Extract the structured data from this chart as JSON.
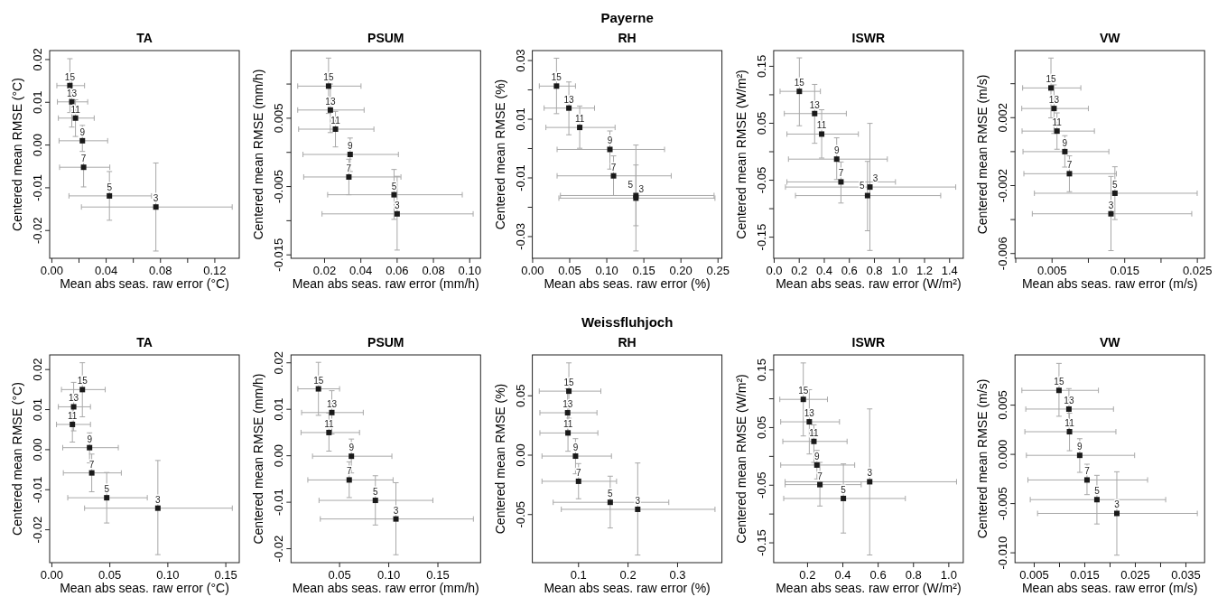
{
  "chart_data": [
    {
      "type": "scatter",
      "title": "TA",
      "xlabel": "Mean abs seas. raw error (°C)",
      "ylabel": "Centered mean RMSE (°C)",
      "color": "#1a1a1a",
      "marker": "square",
      "xlim": [
        -0.0016,
        0.138
      ],
      "ylim": [
        -0.0265,
        0.0221
      ],
      "xticks": [
        {
          "value": 0,
          "label": "0.00"
        },
        {
          "value": 0.02,
          "label": null
        },
        0.04,
        {
          "value": 0.06,
          "label": null
        },
        0.08,
        {
          "value": 0.1,
          "label": null
        },
        0.12
      ],
      "yticks": [
        -0.02,
        -0.01,
        {
          "value": 0,
          "label": "0.00"
        },
        0.01,
        0.02
      ],
      "x": [
        0.0133,
        0.0147,
        0.0174,
        0.0225,
        0.0234,
        0.0424,
        0.0766
      ],
      "values": [
        0.0139,
        0.0101,
        0.0063,
        0.001,
        -0.0052,
        -0.0119,
        -0.0145
      ],
      "xerrors": [
        [
          0.0037,
          0.0241
        ],
        [
          0.0041,
          0.0264
        ],
        [
          0.0048,
          0.0312
        ],
        [
          0.0053,
          0.0411
        ],
        [
          0.0057,
          0.0427
        ],
        [
          0.0126,
          0.0734
        ],
        [
          0.0218,
          0.1328
        ]
      ],
      "errors": [
        [
          0.0076,
          0.0202
        ],
        [
          0.0042,
          0.016
        ],
        [
          0.002,
          0.0106
        ],
        [
          -0.0015,
          0.0046
        ],
        [
          -0.0098,
          -0.0023
        ],
        [
          -0.0176,
          -0.0062
        ],
        [
          -0.0248,
          -0.0042
        ]
      ],
      "annotations": [
        {
          "text": "15",
          "x": 0.0133,
          "y": 0.0139
        },
        {
          "text": "13",
          "x": 0.0147,
          "y": 0.0101
        },
        {
          "text": "11",
          "x": 0.0174,
          "y": 0.0063
        },
        {
          "text": "9",
          "x": 0.0225,
          "y": 0.001
        },
        {
          "text": "7",
          "x": 0.0234,
          "y": -0.0052
        },
        {
          "text": "5",
          "x": 0.0424,
          "y": -0.0119
        },
        {
          "text": "3",
          "x": 0.0766,
          "y": -0.0145
        }
      ]
    },
    {
      "type": "scatter",
      "title": "PSUM",
      "xlabel": "Mean abs seas. raw error (mm/h)",
      "ylabel": "Centered mean RMSE (mm/h)",
      "color": "#1a1a1a",
      "marker": "square",
      "xlim": [
        0.0015,
        0.106
      ],
      "ylim": [
        -0.0155,
        0.0149
      ],
      "xticks": [
        0.02,
        0.04,
        0.06,
        0.08,
        {
          "value": 0.1,
          "label": "0.10"
        }
      ],
      "yticks": [
        -0.015,
        {
          "value": -0.01,
          "label": null
        },
        -0.005,
        {
          "value": 0,
          "label": null
        },
        0.005,
        {
          "value": 0.01,
          "label": null
        }
      ],
      "x": [
        0.0222,
        0.0232,
        0.026,
        0.0341,
        0.0334,
        0.0583,
        0.06
      ],
      "values": [
        0.0097,
        0.0062,
        0.0034,
        -0.0003,
        -0.0036,
        -0.0062,
        -0.009
      ],
      "xerrors": [
        [
          0.0052,
          0.0401
        ],
        [
          0.0052,
          0.0418
        ],
        [
          0.0057,
          0.0472
        ],
        [
          0.0081,
          0.0607
        ],
        [
          0.0085,
          0.0621
        ],
        [
          0.0217,
          0.0959
        ],
        [
          0.0186,
          0.1019
        ]
      ],
      "errors": [
        [
          0.0057,
          0.0138
        ],
        [
          0.0029,
          0.01
        ],
        [
          0.0008,
          0.006
        ],
        [
          -0.0028,
          0.0021
        ],
        [
          -0.0062,
          -0.001
        ],
        [
          -0.0098,
          -0.0025
        ],
        [
          -0.0143,
          -0.0035
        ]
      ],
      "annotations": [
        {
          "text": "15",
          "x": 0.0222,
          "y": 0.0097
        },
        {
          "text": "13",
          "x": 0.0232,
          "y": 0.0062
        },
        {
          "text": "11",
          "x": 0.026,
          "y": 0.0034
        },
        {
          "text": "9",
          "x": 0.0341,
          "y": -0.0003
        },
        {
          "text": "7",
          "x": 0.0334,
          "y": -0.0036
        },
        {
          "text": "5",
          "x": 0.0583,
          "y": -0.0062
        },
        {
          "text": "3",
          "x": 0.06,
          "y": -0.009
        }
      ]
    },
    {
      "type": "scatter",
      "title": "RH",
      "xlabel": "Mean abs seas. raw error (%)",
      "ylabel": "Centered mean RMSE (%)",
      "color": "#1a1a1a",
      "marker": "square",
      "xlim": [
        -0.0004,
        0.2553
      ],
      "ylim": [
        -0.0374,
        0.0334
      ],
      "xticks": [
        {
          "value": 0,
          "label": "0.00"
        },
        0.05,
        {
          "value": 0.1,
          "label": "0.10"
        },
        0.15,
        {
          "value": 0.2,
          "label": "0.20"
        },
        0.25
      ],
      "yticks": [
        -0.03,
        {
          "value": -0.02,
          "label": null
        },
        -0.01,
        {
          "value": 0,
          "label": null
        },
        0.01,
        {
          "value": 0.02,
          "label": null
        },
        0.03
      ],
      "x": [
        0.0322,
        0.0489,
        0.0635,
        0.1042,
        0.1091,
        0.1393,
        0.1393
      ],
      "values": [
        0.0213,
        0.0138,
        0.0072,
        -0.0003,
        -0.0093,
        -0.016,
        -0.0169
      ],
      "xerrors": [
        [
          0.009,
          0.0578
        ],
        [
          0.0155,
          0.0835
        ],
        [
          0.0179,
          0.1112
        ],
        [
          0.033,
          0.1779
        ],
        [
          0.033,
          0.1869
        ],
        [
          0.0375,
          0.2447
        ],
        [
          0.0354,
          0.2459
        ]
      ],
      "errors": [
        [
          0.0119,
          0.0308
        ],
        [
          0.0047,
          0.0227
        ],
        [
          0.0001,
          0.0145
        ],
        [
          -0.007,
          0.006
        ],
        [
          -0.016,
          -0.0025
        ],
        [
          -0.0263,
          -0.0056
        ],
        [
          -0.0349,
          0.0012
        ]
      ],
      "annotations": [
        "Payerne",
        {
          "text": "15",
          "x": 0.0322,
          "y": 0.0213
        },
        {
          "text": "13",
          "x": 0.0489,
          "y": 0.0138
        },
        {
          "text": "11",
          "x": 0.0635,
          "y": 0.0072
        },
        {
          "text": "9",
          "x": 0.1042,
          "y": -0.0003
        },
        {
          "text": "7",
          "x": 0.1091,
          "y": -0.0093
        },
        {
          "text": "5",
          "x": 0.1393,
          "y": -0.016
        },
        {
          "text": "3",
          "x": 0.1393,
          "y": -0.0169
        }
      ]
    },
    {
      "type": "scatter",
      "title": "ISWR",
      "xlabel": "Mean abs seas. raw error (W/m²)",
      "ylabel": "Centered mean RMSE (W/m²)",
      "color": "#1a1a1a",
      "marker": "square",
      "xlim": [
        -0.004,
        1.509
      ],
      "ylim": [
        -0.1871,
        0.1776
      ],
      "xticks": [
        {
          "value": 0,
          "label": "0.0"
        },
        0.2,
        0.4,
        0.6,
        0.8,
        {
          "value": 1,
          "label": "1.0"
        },
        1.2,
        1.4
      ],
      "yticks": [
        -0.15,
        {
          "value": -0.1,
          "label": null
        },
        -0.05,
        {
          "value": 0,
          "label": null
        },
        0.05,
        {
          "value": 0.1,
          "label": null
        },
        0.15
      ],
      "x": [
        0.201,
        0.323,
        0.379,
        0.499,
        0.533,
        0.745,
        0.764
      ],
      "values": [
        0.106,
        0.067,
        0.031,
        -0.013,
        -0.053,
        -0.077,
        -0.062
      ],
      "xerrors": [
        [
          0.047,
          0.369
        ],
        [
          0.081,
          0.576
        ],
        [
          0.102,
          0.672
        ],
        [
          0.114,
          0.903
        ],
        [
          0.102,
          0.968
        ],
        [
          0.17,
          1.329
        ],
        [
          0.09,
          1.449
        ]
      ],
      "errors": [
        [
          0.0456,
          0.1648
        ],
        [
          0.0148,
          0.1182
        ],
        [
          -0.0111,
          0.0737
        ],
        [
          -0.0488,
          0.0244
        ],
        [
          -0.0901,
          -0.018
        ],
        [
          -0.1388,
          -0.017
        ],
        [
          -0.1733,
          0.0498
        ]
      ],
      "annotations": [
        {
          "text": "15",
          "x": 0.201,
          "y": 0.106
        },
        {
          "text": "13",
          "x": 0.323,
          "y": 0.067
        },
        {
          "text": "11",
          "x": 0.379,
          "y": 0.031
        },
        {
          "text": "9",
          "x": 0.499,
          "y": -0.013
        },
        {
          "text": "7",
          "x": 0.533,
          "y": -0.053
        },
        {
          "text": "5",
          "x": 0.745,
          "y": -0.077
        },
        {
          "text": "3",
          "x": 0.764,
          "y": -0.062
        }
      ]
    },
    {
      "type": "scatter",
      "title": "VW",
      "xlabel": "Mean abs seas. raw error (m/s)",
      "ylabel": "Centered mean RMSE (m/s)",
      "color": "#1a1a1a",
      "marker": "square",
      "xlim": [
        -0.0001,
        0.026
      ],
      "ylim": [
        -0.00628,
        0.00595
      ],
      "xticks": [
        {
          "value": 0,
          "label": null
        },
        0.005,
        {
          "value": 0.01,
          "label": null
        },
        0.015,
        {
          "value": 0.02,
          "label": null
        },
        0.025
      ],
      "yticks": [
        -0.006,
        {
          "value": -0.004,
          "label": null
        },
        -0.002,
        {
          "value": 0,
          "label": null
        },
        0.002,
        {
          "value": 0.004,
          "label": null
        }
      ],
      "x": [
        0.00485,
        0.00527,
        0.00568,
        0.00676,
        0.00739,
        0.01365,
        0.01311
      ],
      "values": [
        0.00375,
        0.00254,
        0.00121,
        0,
        -0.0013,
        -0.00245,
        -0.00366
      ],
      "xerrors": [
        [
          0.00095,
          0.00896
        ],
        [
          0.00083,
          0.01
        ],
        [
          0.00087,
          0.01083
        ],
        [
          0.001,
          0.01282
        ],
        [
          0.00112,
          0.01386
        ],
        [
          0.00257,
          0.02498
        ],
        [
          0.00228,
          0.02423
        ]
      ],
      "errors": [
        [
          0.00199,
          0.00551
        ],
        [
          0.00107,
          0.00393
        ],
        [
          0.00014,
          0.00228
        ],
        [
          -0.00091,
          0.00094
        ],
        [
          -0.00236,
          -0.00025
        ],
        [
          -0.004,
          -0.00089
        ],
        [
          -0.00583,
          -0.00146
        ]
      ],
      "annotations": [
        {
          "text": "15",
          "x": 0.00485,
          "y": 0.00375
        },
        {
          "text": "13",
          "x": 0.00527,
          "y": 0.00254
        },
        {
          "text": "11",
          "x": 0.00568,
          "y": 0.00121
        },
        {
          "text": "9",
          "x": 0.00676,
          "y": 0
        },
        {
          "text": "7",
          "x": 0.00739,
          "y": -0.0013
        },
        {
          "text": "5",
          "x": 0.01365,
          "y": -0.00245
        },
        {
          "text": "3",
          "x": 0.01311,
          "y": -0.00366
        }
      ]
    },
    {
      "type": "scatter",
      "title": "TA",
      "xlabel": "Mean abs seas. raw error (°C)",
      "ylabel": "Centered mean RMSE (°C)",
      "color": "#1a1a1a",
      "marker": "square",
      "xlim": [
        -0.0019,
        0.1616
      ],
      "ylim": [
        -0.0282,
        0.02365
      ],
      "xticks": [
        {
          "value": 0,
          "label": "0.00"
        },
        0.05,
        {
          "value": 0.1,
          "label": "0.10"
        },
        0.15
      ],
      "yticks": [
        -0.02,
        -0.01,
        {
          "value": 0,
          "label": "0.00"
        },
        0.01,
        0.02
      ],
      "x": [
        0.0263,
        0.0188,
        0.0177,
        0.0325,
        0.0344,
        0.0473,
        0.0914
      ],
      "values": [
        0.015,
        0.0107,
        0.0063,
        0.0005,
        -0.0058,
        -0.012,
        -0.0146
      ],
      "xerrors": [
        [
          0.0083,
          0.046
        ],
        [
          0.0056,
          0.0333
        ],
        [
          0.004,
          0.0333
        ],
        [
          0.0094,
          0.0573
        ],
        [
          0.0099,
          0.0599
        ],
        [
          0.0137,
          0.0823
        ],
        [
          0.0282,
          0.1556
        ]
      ],
      "errors": [
        [
          0.0082,
          0.0217
        ],
        [
          0.0047,
          0.0168
        ],
        [
          0.0019,
          0.0107
        ],
        [
          -0.0033,
          0.0042
        ],
        [
          -0.0105,
          -0.0011
        ],
        [
          -0.0183,
          -0.0057
        ],
        [
          -0.0262,
          -0.0027
        ]
      ],
      "annotations": [
        {
          "text": "15",
          "x": 0.0263,
          "y": 0.015
        },
        {
          "text": "13",
          "x": 0.0188,
          "y": 0.0107
        },
        {
          "text": "11",
          "x": 0.0177,
          "y": 0.0063
        },
        {
          "text": "9",
          "x": 0.0325,
          "y": 0.0005
        },
        {
          "text": "7",
          "x": 0.0344,
          "y": -0.0058
        },
        {
          "text": "5",
          "x": 0.0473,
          "y": -0.012
        },
        {
          "text": "3",
          "x": 0.0914,
          "y": -0.0146
        }
      ]
    },
    {
      "type": "scatter",
      "title": "PSUM",
      "xlabel": "Mean abs seas. raw error (mm/h)",
      "ylabel": "Centered mean RMSE (mm/h)",
      "color": "#1a1a1a",
      "marker": "square",
      "xlim": [
        0.0006,
        0.1934
      ],
      "ylim": [
        -0.023,
        0.0217
      ],
      "xticks": [
        0.05,
        {
          "value": 0.1,
          "label": "0.10"
        },
        0.15
      ],
      "yticks": [
        -0.02,
        -0.01,
        {
          "value": 0,
          "label": "0.00"
        },
        0.01,
        0.02
      ],
      "x": [
        0.0285,
        0.0421,
        0.0392,
        0.062,
        0.0598,
        0.0864,
        0.1073
      ],
      "values": [
        0.0144,
        0.0093,
        0.005,
        -0.0001,
        -0.0052,
        -0.0096,
        -0.0136
      ],
      "xerrors": [
        [
          0.0076,
          0.05
        ],
        [
          0.0114,
          0.0741
        ],
        [
          0.0108,
          0.0703
        ],
        [
          0.0225,
          0.1032
        ],
        [
          0.0177,
          0.1044
        ],
        [
          0.0291,
          0.1449
        ],
        [
          0.0304,
          0.1861
        ]
      ],
      "errors": [
        [
          0.0087,
          0.0201
        ],
        [
          0.0047,
          0.014
        ],
        [
          0.001,
          0.0092
        ],
        [
          -0.0037,
          0.0036
        ],
        [
          -0.009,
          -0.0013
        ],
        [
          -0.0149,
          -0.0043
        ],
        [
          -0.0213,
          -0.0058
        ]
      ],
      "annotations": [
        {
          "text": "15",
          "x": 0.0285,
          "y": 0.0144
        },
        {
          "text": "13",
          "x": 0.0421,
          "y": 0.0093
        },
        {
          "text": "11",
          "x": 0.0392,
          "y": 0.005
        },
        {
          "text": "9",
          "x": 0.062,
          "y": -0.0001
        },
        {
          "text": "7",
          "x": 0.0598,
          "y": -0.0052
        },
        {
          "text": "5",
          "x": 0.0864,
          "y": -0.0096
        },
        {
          "text": "3",
          "x": 0.1073,
          "y": -0.0136
        }
      ]
    },
    {
      "type": "scatter",
      "title": "RH",
      "xlabel": "Mean abs seas. raw error (%)",
      "ylabel": "Centered mean RMSE (%)",
      "color": "#1a1a1a",
      "marker": "square",
      "xlim": [
        0.0067,
        0.3896
      ],
      "ylim": [
        -0.0905,
        0.0844
      ],
      "xticks": [
        0.1,
        0.2,
        0.3
      ],
      "yticks": [
        -0.05,
        {
          "value": 0,
          "label": "0.00"
        },
        0.05
      ],
      "x": [
        0.0805,
        0.078,
        0.0787,
        0.0939,
        0.1,
        0.164,
        0.2195
      ],
      "values": [
        0.0539,
        0.0357,
        0.0187,
        -0.0008,
        -0.022,
        -0.0397,
        -0.0456
      ],
      "xerrors": [
        [
          0.0207,
          0.1451
        ],
        [
          0.022,
          0.1372
        ],
        [
          0.022,
          0.139
        ],
        [
          0.0262,
          0.1665
        ],
        [
          0.0262,
          0.1768
        ],
        [
          0.0488,
          0.2823
        ],
        [
          0.0652,
          0.3756
        ]
      ],
      "errors": [
        [
          0.0311,
          0.0777
        ],
        [
          0.0205,
          0.0559
        ],
        [
          0.0033,
          0.0294
        ],
        [
          -0.0157,
          0.0139
        ],
        [
          -0.0367,
          -0.0071
        ],
        [
          -0.0613,
          -0.0177
        ],
        [
          -0.0841,
          -0.0066
        ]
      ],
      "annotations": [
        "Weissfluhjoch",
        {
          "text": "15",
          "x": 0.0805,
          "y": 0.0539
        },
        {
          "text": "13",
          "x": 0.078,
          "y": 0.0357
        },
        {
          "text": "11",
          "x": 0.0787,
          "y": 0.0187
        },
        {
          "text": "9",
          "x": 0.0939,
          "y": -0.0008
        },
        {
          "text": "7",
          "x": 0.1,
          "y": -0.022
        },
        {
          "text": "5",
          "x": 0.164,
          "y": -0.0397
        },
        {
          "text": "3",
          "x": 0.2195,
          "y": -0.0456
        }
      ]
    },
    {
      "type": "scatter",
      "title": "ISWR",
      "xlabel": "Mean abs seas. raw error (W/m²)",
      "ylabel": "Centered mean RMSE (W/m²)",
      "color": "#1a1a1a",
      "marker": "square",
      "xlim": [
        0.0082,
        1.082
      ],
      "ylim": [
        -0.1844,
        0.1761
      ],
      "xticks": [
        0.2,
        0.4,
        0.6,
        0.8,
        {
          "value": 1,
          "label": "1.0"
        }
      ],
      "yticks": [
        -0.15,
        {
          "value": -0.1,
          "label": null
        },
        -0.05,
        {
          "value": 0,
          "label": null
        },
        0.05,
        {
          "value": 0.1,
          "label": null
        },
        0.15
      ],
      "x": [
        0.176,
        0.21,
        0.236,
        0.253,
        0.27,
        0.403,
        0.552
      ],
      "values": [
        0.099,
        0.06,
        0.026,
        -0.015,
        -0.049,
        -0.073,
        -0.044
      ],
      "xerrors": [
        [
          0.043,
          0.313
        ],
        [
          0.048,
          0.381
        ],
        [
          0.06,
          0.424
        ],
        [
          0.048,
          0.467
        ],
        [
          0.073,
          0.504
        ],
        [
          0.065,
          0.754
        ],
        [
          0.073,
          1.044
        ]
      ],
      "errors": [
        [
          0.0355,
          0.1622
        ],
        [
          0.0042,
          0.1158
        ],
        [
          -0.0104,
          0.0548
        ],
        [
          -0.0391,
          0.0104
        ],
        [
          -0.0861,
          -0.0104
        ],
        [
          -0.133,
          -0.013
        ],
        [
          -0.1711,
          0.0824
        ]
      ],
      "annotations": [
        {
          "text": "15",
          "x": 0.176,
          "y": 0.099
        },
        {
          "text": "13",
          "x": 0.21,
          "y": 0.06
        },
        {
          "text": "11",
          "x": 0.236,
          "y": 0.026
        },
        {
          "text": "9",
          "x": 0.253,
          "y": -0.015
        },
        {
          "text": "7",
          "x": 0.27,
          "y": -0.049
        },
        {
          "text": "5",
          "x": 0.403,
          "y": -0.073
        },
        {
          "text": "3",
          "x": 0.552,
          "y": -0.044
        }
      ]
    },
    {
      "type": "scatter",
      "title": "VW",
      "xlabel": "Mean abs seas. raw error (m/s)",
      "ylabel": "Centered mean RMSE (m/s)",
      "color": "#1a1a1a",
      "marker": "square",
      "xlim": [
        0.0012,
        0.0387
      ],
      "ylim": [
        -0.011,
        0.0101
      ],
      "xticks": [
        0.005,
        {
          "value": 0.01,
          "label": null
        },
        0.015,
        {
          "value": 0.02,
          "label": null
        },
        0.025,
        {
          "value": 0.03,
          "label": null
        },
        0.035
      ],
      "yticks": [
        {
          "value": -0.01,
          "label": "-0.010"
        },
        -0.005,
        {
          "value": 0,
          "label": "0.000"
        },
        0.005
      ],
      "x": [
        0.0099,
        0.01186,
        0.01198,
        0.014,
        0.01544,
        0.0174,
        0.02134
      ],
      "values": [
        0.0065,
        0.0046,
        0.0023,
        -0.0001,
        -0.0026,
        -0.0046,
        -0.006
      ],
      "xerrors": [
        [
          0.00256,
          0.0177
        ],
        [
          0.00333,
          0.02068
        ],
        [
          0.00315,
          0.02116
        ],
        [
          0.00345,
          0.02486
        ],
        [
          0.00375,
          0.02742
        ],
        [
          0.00422,
          0.031
        ],
        [
          0.00566,
          0.03726
        ]
      ],
      "errors": [
        [
          0.00387,
          0.00924
        ],
        [
          0.0022,
          0.00668
        ],
        [
          0.00037,
          0.00418
        ],
        [
          -0.00183,
          0.00159
        ],
        [
          -0.00409,
          -0.001
        ],
        [
          -0.00707,
          -0.00213
        ],
        [
          -0.01024,
          -0.00177
        ]
      ],
      "annotations": [
        {
          "text": "15",
          "x": 0.0099,
          "y": 0.0065
        },
        {
          "text": "13",
          "x": 0.01186,
          "y": 0.0046
        },
        {
          "text": "11",
          "x": 0.01198,
          "y": 0.0023
        },
        {
          "text": "9",
          "x": 0.014,
          "y": -0.0001
        },
        {
          "text": "7",
          "x": 0.01544,
          "y": -0.0026
        },
        {
          "text": "5",
          "x": 0.0174,
          "y": -0.0046
        },
        {
          "text": "3",
          "x": 0.02134,
          "y": -0.006
        }
      ]
    }
  ]
}
